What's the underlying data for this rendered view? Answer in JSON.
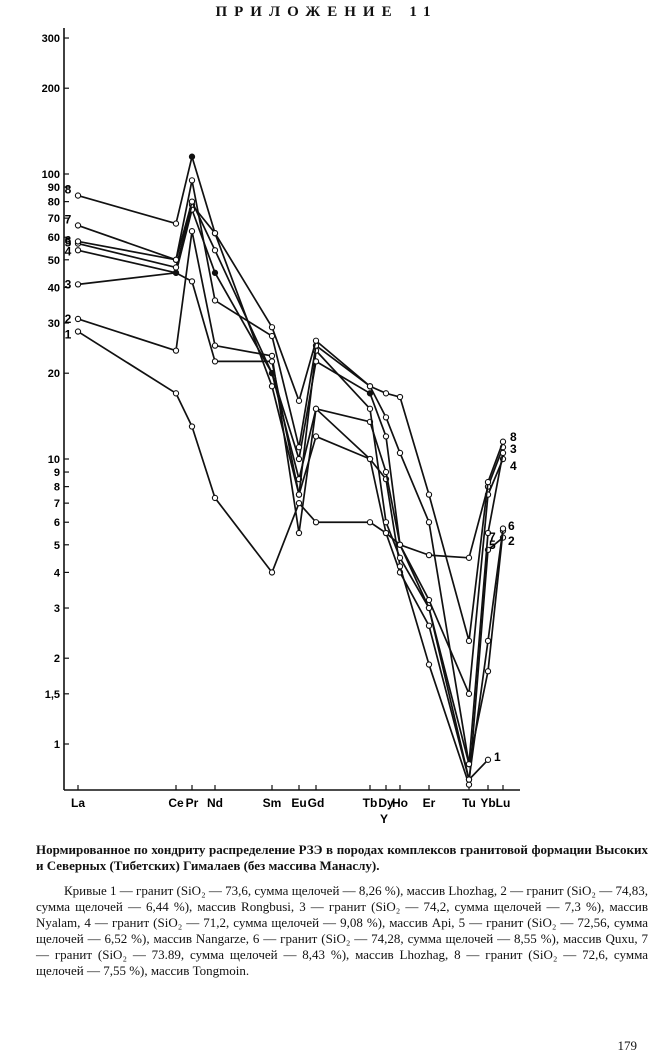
{
  "page": {
    "header": "ПРИЛОЖЕНИЕ 11",
    "page_number": "179"
  },
  "caption": {
    "title": "Нормированное по хондриту распределение РЗЭ в породах комплексов гранитовой формации Высоких и Северных (Тибетских) Гималаев (без массива Манаслу).",
    "legend": "Кривые 1 — гранит (SiO₂ — 73,6, сумма щелочей — 8,26 %), массив Lhozhag, 2 — гранит (SiO₂ — 74,83, сумма щелочей — 6,44 %), массив Rongbusi, 3 — гранит (SiO₂ — 74,2, сумма щелочей — 7,3 %), массив Nyalam, 4 — гранит (SiO₂ — 71,2, сумма щелочей — 9,08 %), массив Api, 5 — гранит (SiO₂ — 72,56, сумма щелочей — 6,52 %), массив Nangarze, 6 — гранит (SiO₂ — 74,28, сумма щелочей — 8,55 %), массив Quxu, 7 — гранит (SiO₂ — 73.89, сумма щелочей — 8,43 %), массив Lhozhag, 8 — гранит (SiO₂ — 72,6, сумма щелочей — 7,55 %), массив Tongmoin."
  },
  "chart_data": {
    "type": "line",
    "yscale": "log",
    "ylim": [
      0.7,
      330
    ],
    "grid": false,
    "yticks": [
      1,
      1.5,
      2,
      3,
      4,
      5,
      6,
      7,
      8,
      9,
      10,
      20,
      30,
      40,
      50,
      60,
      70,
      80,
      90,
      100,
      200,
      300
    ],
    "ytick_labels": [
      "1",
      "1,5",
      "2",
      "3",
      "4",
      "5",
      "6",
      "7",
      "8",
      "9",
      "10",
      "20",
      "30",
      "40",
      "50",
      "60",
      "70",
      "80",
      "90",
      "100",
      "200",
      "300"
    ],
    "categories": [
      "La",
      "Ce",
      "Pr",
      "Nd",
      "Sm",
      "Eu",
      "Gd",
      "Tb",
      "Dy",
      "Ho",
      "Er",
      "Tu",
      "Yb",
      "Lu"
    ],
    "category_labels": [
      "La",
      "Ce",
      "Pr",
      "Nd",
      "Sm",
      "Eu",
      "Gd",
      "Tb",
      "Dy",
      "Ho",
      "Er",
      "Tu",
      "Yb",
      "Lu"
    ],
    "extra_x_label": "Y",
    "series": [
      {
        "name": "1",
        "values": {
          "La": 28,
          "Ce": 17,
          "Pr": 13,
          "Nd": 7.3,
          "Sm": 4,
          "Eu": 7,
          "Gd": 6,
          "Tb": 6,
          "Dy": 5.5,
          "Ho": 4,
          "Er": 2.6,
          "Tu": 0.75,
          "Yb": 0.88
        }
      },
      {
        "name": "2",
        "values": {
          "La": 31,
          "Ce": 24,
          "Pr": 63,
          "Nd": 25,
          "Sm": 23,
          "Eu": 5.5,
          "Gd": 15,
          "Tb": 10,
          "Dy": 8.5,
          "Ho": 4.2,
          "Er": 1.9,
          "Tu": 0.72,
          "Yb": 4.8,
          "Lu": 5.3
        }
      },
      {
        "name": "3",
        "values": {
          "La": 41,
          "Ce": 45,
          "Pr": 42,
          "Nd": 22,
          "Sm": 22,
          "Eu": 7.5,
          "Gd": 12,
          "Tb": 10,
          "Dy": 5.5,
          "Ho": 5,
          "Er": 4.6,
          "Tu": 4.5,
          "Yb": 8,
          "Lu": 11
        }
      },
      {
        "name": "4",
        "values": {
          "La": 54,
          "Ce": 45,
          "Pr": 75,
          "Nd": 45,
          "Sm": 20,
          "Eu": 8.5,
          "Gd": 15,
          "Tb": 13.5,
          "Dy": 9,
          "Ho": 5,
          "Er": 3.2,
          "Tu": 1.5,
          "Yb": 7.5,
          "Lu": 10
        }
      },
      {
        "name": "5",
        "values": {
          "La": 57,
          "Ce": 47,
          "Pr": 78,
          "Nd": 62,
          "Sm": 18,
          "Eu": 7.5,
          "Gd": 24,
          "Tb": 15,
          "Dy": 6,
          "Ho": 4.5,
          "Er": 3,
          "Tu": 0.85,
          "Yb": 1.8,
          "Lu": 5.6
        }
      },
      {
        "name": "6",
        "values": {
          "La": 58,
          "Ce": 50,
          "Pr": 80,
          "Nd": 54,
          "Sm": 20,
          "Eu": 10,
          "Gd": 22,
          "Tb": 17,
          "Dy": 12,
          "Ho": 5,
          "Er": 3,
          "Tu": 0.75,
          "Yb": 2.3,
          "Lu": 5.7
        }
      },
      {
        "name": "7",
        "values": {
          "La": 66,
          "Ce": 50,
          "Pr": 95,
          "Nd": 36,
          "Sm": 27,
          "Eu": 11,
          "Gd": 25,
          "Tb": 18,
          "Dy": 14,
          "Ho": 10.5,
          "Er": 6,
          "Tu": 0.85,
          "Yb": 5.5,
          "Lu": 10.5
        }
      },
      {
        "name": "8",
        "values": {
          "La": 84,
          "Ce": 67,
          "Pr": 115,
          "Nd": 62,
          "Sm": 29,
          "Eu": 16,
          "Gd": 26,
          "Tb": 18,
          "Dy": 17,
          "Ho": 16.5,
          "Er": 7.5,
          "Tu": 2.3,
          "Yb": 8.3,
          "Lu": 11.5
        }
      }
    ]
  }
}
